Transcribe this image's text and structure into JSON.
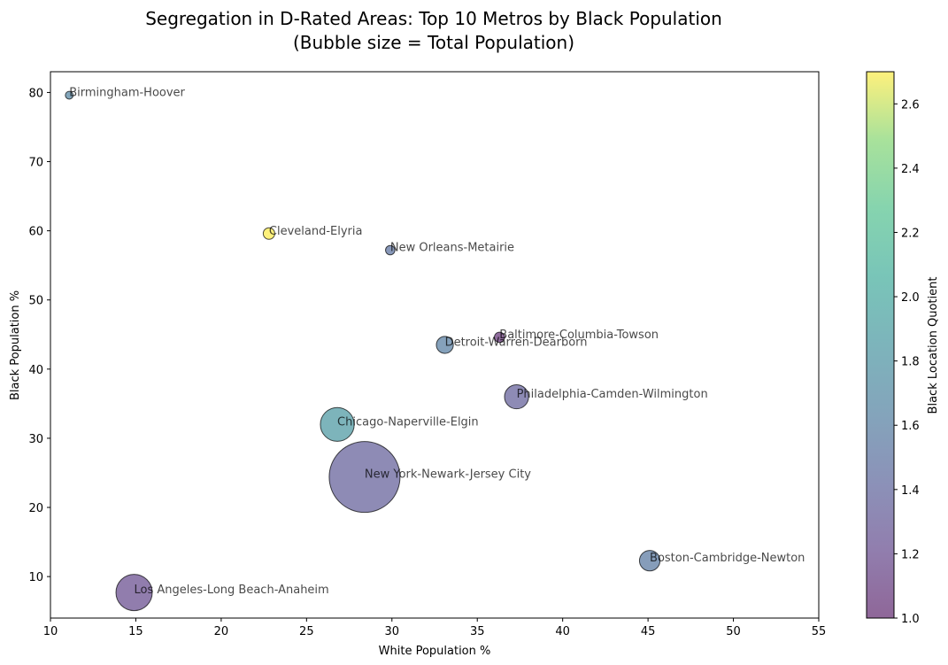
{
  "chart_data": {
    "type": "scatter",
    "title_lines": [
      "Segregation in D-Rated Areas: Top 10 Metros by Black Population",
      "(Bubble size = Total Population)"
    ],
    "xlabel": "White Population %",
    "ylabel": "Black Population %",
    "colorbar_label": "Black Location Quotient",
    "xlim": [
      10,
      55
    ],
    "ylim": [
      4,
      83
    ],
    "xticks": [
      10,
      15,
      20,
      25,
      30,
      35,
      40,
      45,
      50,
      55
    ],
    "yticks": [
      10,
      20,
      30,
      40,
      50,
      60,
      70,
      80
    ],
    "color_range": [
      1.0,
      2.7
    ],
    "colorbar_ticks": [
      "1.0",
      "1.2",
      "1.4",
      "1.6",
      "1.8",
      "2.0",
      "2.2",
      "2.4",
      "2.6"
    ],
    "colormap": "viridis",
    "grid": false,
    "points": [
      {
        "name": "Birmingham-Hoover",
        "x": 11.1,
        "y": 79.6,
        "lq": 1.65,
        "pop": 0.7
      },
      {
        "name": "Cleveland-Elyria",
        "x": 22.8,
        "y": 59.6,
        "lq": 2.7,
        "pop": 1.5
      },
      {
        "name": "New Orleans-Metairie",
        "x": 29.9,
        "y": 57.2,
        "lq": 1.5,
        "pop": 1.0
      },
      {
        "name": "Baltimore-Columbia-Towson",
        "x": 36.3,
        "y": 44.6,
        "lq": 1.05,
        "pop": 1.2
      },
      {
        "name": "Detroit-Warren-Dearborn",
        "x": 33.1,
        "y": 43.5,
        "lq": 1.6,
        "pop": 3.3
      },
      {
        "name": "Philadelphia-Camden-Wilmington",
        "x": 37.3,
        "y": 36.0,
        "lq": 1.35,
        "pop": 6.6
      },
      {
        "name": "Chicago-Naperville-Elgin",
        "x": 26.8,
        "y": 32.0,
        "lq": 1.85,
        "pop": 13.0
      },
      {
        "name": "New York-Newark-Jersey City",
        "x": 28.4,
        "y": 24.4,
        "lq": 1.35,
        "pop": 57.0
      },
      {
        "name": "Boston-Cambridge-Newton",
        "x": 45.1,
        "y": 12.3,
        "lq": 1.55,
        "pop": 4.8
      },
      {
        "name": "Los Angeles-Long Beach-Anaheim",
        "x": 14.9,
        "y": 7.7,
        "lq": 1.2,
        "pop": 15.0
      }
    ]
  }
}
